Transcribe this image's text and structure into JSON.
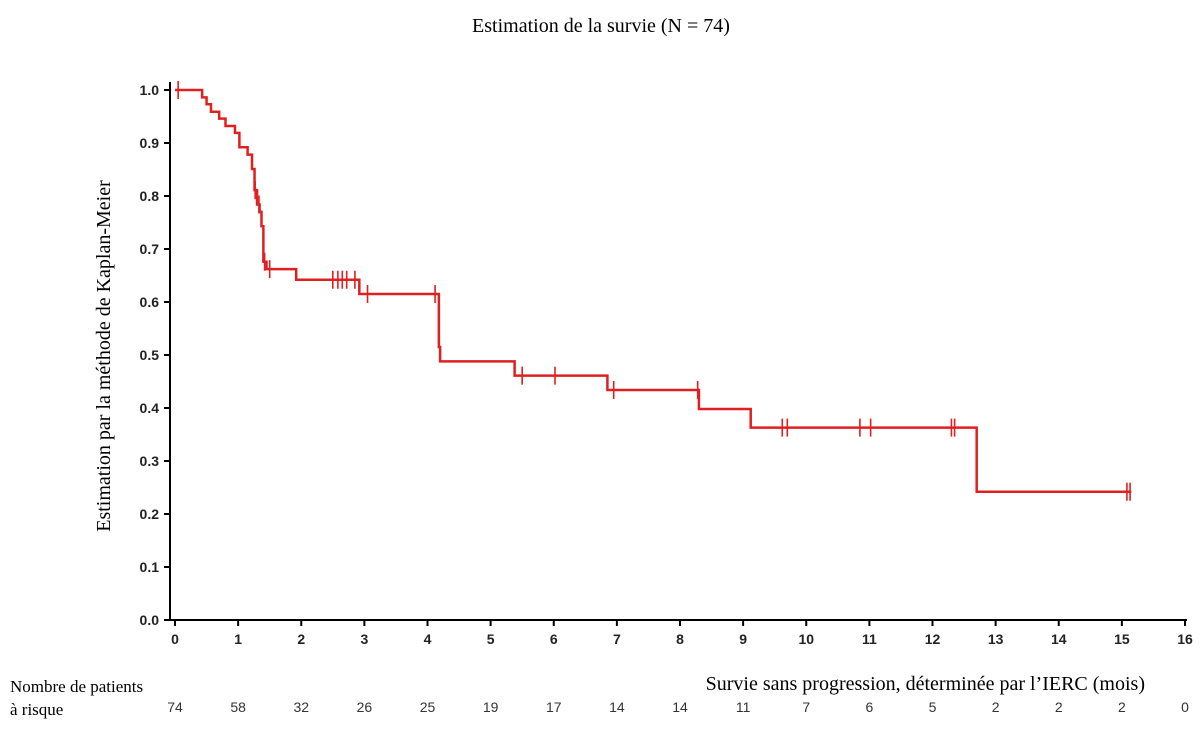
{
  "chart_data": {
    "type": "line",
    "title": "Estimation de la survie (N = 74)",
    "xlabel": "Survie sans progression, déterminée par l’IERC (mois)",
    "ylabel": "Estimation par la méthode de Kaplan-Meier",
    "xlim": [
      0,
      16
    ],
    "ylim": [
      0.0,
      1.0
    ],
    "x_ticks": [
      "0",
      "1",
      "2",
      "3",
      "4",
      "5",
      "6",
      "7",
      "8",
      "9",
      "10",
      "11",
      "12",
      "13",
      "14",
      "15",
      "16"
    ],
    "y_ticks": [
      "0.0",
      "0.1",
      "0.2",
      "0.3",
      "0.4",
      "0.5",
      "0.6",
      "0.7",
      "0.8",
      "0.9",
      "1.0"
    ],
    "line_color": "#e02020",
    "grid": false,
    "series": [
      {
        "step_points": [
          [
            0,
            1.0
          ],
          [
            0.43,
            0.986
          ],
          [
            0.5,
            0.973
          ],
          [
            0.57,
            0.959
          ],
          [
            0.7,
            0.946
          ],
          [
            0.8,
            0.932
          ],
          [
            0.95,
            0.919
          ],
          [
            1.02,
            0.892
          ],
          [
            1.15,
            0.878
          ],
          [
            1.22,
            0.851
          ],
          [
            1.26,
            0.811
          ],
          [
            1.3,
            0.784
          ],
          [
            1.34,
            0.77
          ],
          [
            1.37,
            0.743
          ],
          [
            1.4,
            0.676
          ],
          [
            1.45,
            0.662
          ],
          [
            1.92,
            0.642
          ],
          [
            2.92,
            0.615
          ],
          [
            4.18,
            0.515
          ],
          [
            4.2,
            0.488
          ],
          [
            5.38,
            0.461
          ],
          [
            6.85,
            0.434
          ],
          [
            8.3,
            0.398
          ],
          [
            9.12,
            0.363
          ],
          [
            12.7,
            0.242
          ],
          [
            15.15,
            0.242
          ]
        ],
        "censor_times": [
          0.05,
          1.27,
          1.33,
          1.42,
          1.5,
          2.5,
          2.58,
          2.65,
          2.72,
          2.85,
          3.05,
          4.12,
          5.5,
          6.02,
          6.95,
          8.28,
          9.62,
          9.7,
          10.85,
          11.02,
          12.3,
          12.35,
          15.08,
          15.13
        ]
      }
    ]
  },
  "risk_table": {
    "title_line1": "Nombre de patients",
    "title_line2": "à risque",
    "values": [
      "74",
      "58",
      "32",
      "26",
      "25",
      "19",
      "17",
      "14",
      "14",
      "11",
      "7",
      "6",
      "5",
      "2",
      "2",
      "2",
      "0"
    ]
  }
}
